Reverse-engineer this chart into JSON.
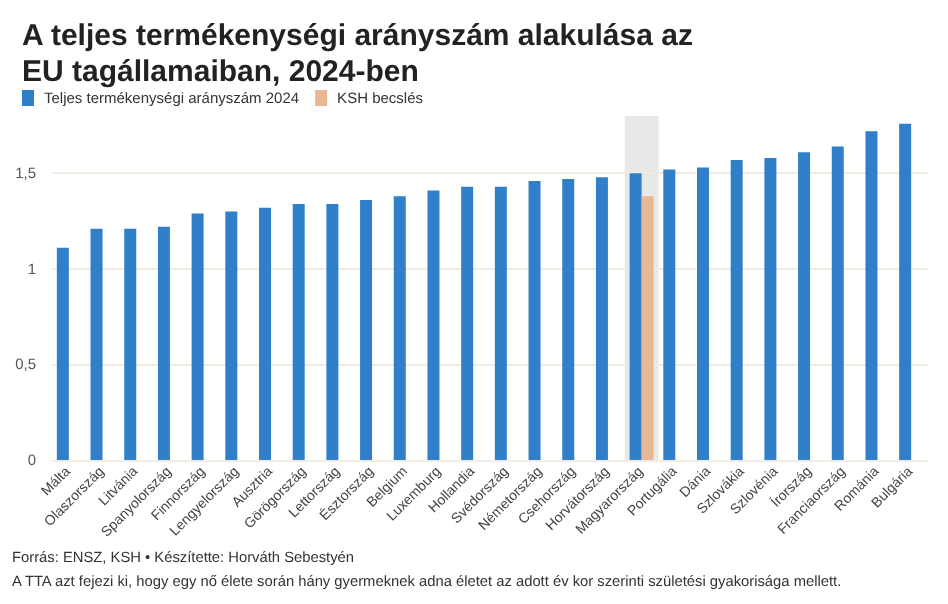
{
  "chart_data": {
    "type": "bar",
    "title": "A teljes termékenységi arányszám alakulása az EU tagállamaiban, 2024-ben",
    "categories": [
      "Málta",
      "Olaszország",
      "Litvánia",
      "Spanyolország",
      "Finnország",
      "Lengyelország",
      "Ausztria",
      "Görögország",
      "Lettország",
      "Észtország",
      "Belgium",
      "Luxemburg",
      "Hollandia",
      "Svédország",
      "Németország",
      "Csehország",
      "Horvátország",
      "Magyarország",
      "Portugália",
      "Dánia",
      "Szlovákia",
      "Szlovénia",
      "Írország",
      "Franciaország",
      "Románia",
      "Bulgária"
    ],
    "series": [
      {
        "name": "Teljes termékenységi arányszám 2024",
        "color": "#2f80c8",
        "values": [
          1.11,
          1.21,
          1.21,
          1.22,
          1.29,
          1.3,
          1.32,
          1.34,
          1.34,
          1.36,
          1.38,
          1.41,
          1.43,
          1.43,
          1.46,
          1.47,
          1.48,
          1.5,
          1.52,
          1.53,
          1.57,
          1.58,
          1.61,
          1.64,
          1.72,
          1.76
        ]
      },
      {
        "name": "KSH becslés",
        "color": "#e8b896",
        "values": [
          null,
          null,
          null,
          null,
          null,
          null,
          null,
          null,
          null,
          null,
          null,
          null,
          null,
          null,
          null,
          null,
          null,
          1.38,
          null,
          null,
          null,
          null,
          null,
          null,
          null,
          null
        ]
      }
    ],
    "ylim": [
      0,
      1.8
    ],
    "yticks": [
      0,
      {
        "value": 0.5,
        "label": "0,5"
      },
      1,
      {
        "value": 1.5,
        "label": "1,5"
      }
    ],
    "grid": "y",
    "legend": "top left",
    "bands": [
      {
        "axis": "x",
        "from": "Magyarország",
        "to": "Magyarország",
        "color": "#e8e8e8"
      }
    ],
    "annotations": [
      "Forrás: ENSZ, KSH • Készítette: Horváth Sebestyén",
      "A TTA azt fejezi ki, hogy egy nő élete során hány gyermeknek adna életet az adott év kor szerinti születési gyakorisága mellett."
    ]
  }
}
